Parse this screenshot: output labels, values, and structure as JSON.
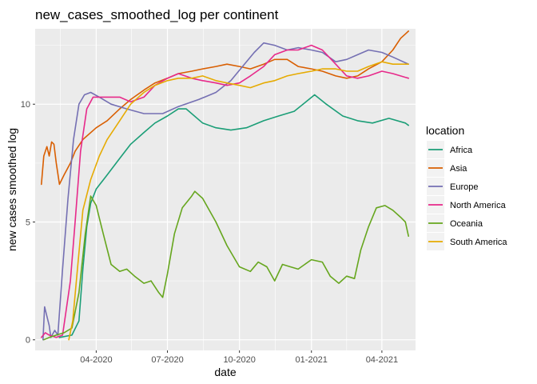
{
  "chart_data": {
    "type": "line",
    "title": "new_cases_smoothed_log per continent",
    "xlabel": "date",
    "ylabel": "new cases smoothed log",
    "xlim": [
      "2020-01-14",
      "2021-05-14"
    ],
    "ylim": [
      -0.45,
      13.2
    ],
    "x_ticks": [
      "2020-04-01",
      "2020-07-01",
      "2020-10-01",
      "2021-01-01",
      "2021-04-01"
    ],
    "x_tick_labels": [
      "04-2020",
      "07-2020",
      "10-2020",
      "01-2021",
      "04-2021"
    ],
    "y_ticks": [
      0,
      5,
      10
    ],
    "y_tick_labels": [
      "0",
      "5",
      "10"
    ],
    "grid": true,
    "legend": {
      "title": "location",
      "position": "right"
    },
    "series": [
      {
        "name": "Africa",
        "color": "#1b9e77",
        "points": [
          [
            "2020-02-14",
            0.1
          ],
          [
            "2020-03-01",
            0.2
          ],
          [
            "2020-03-10",
            0.8
          ],
          [
            "2020-03-15",
            3.0
          ],
          [
            "2020-03-20",
            4.8
          ],
          [
            "2020-03-25",
            5.8
          ],
          [
            "2020-04-01",
            6.4
          ],
          [
            "2020-04-15",
            7.0
          ],
          [
            "2020-05-01",
            7.7
          ],
          [
            "2020-05-15",
            8.3
          ],
          [
            "2020-06-01",
            8.8
          ],
          [
            "2020-06-15",
            9.2
          ],
          [
            "2020-07-01",
            9.5
          ],
          [
            "2020-07-15",
            9.8
          ],
          [
            "2020-07-25",
            9.8
          ],
          [
            "2020-08-15",
            9.2
          ],
          [
            "2020-09-01",
            9.0
          ],
          [
            "2020-09-20",
            8.9
          ],
          [
            "2020-10-10",
            9.0
          ],
          [
            "2020-11-01",
            9.3
          ],
          [
            "2020-11-20",
            9.5
          ],
          [
            "2020-12-10",
            9.7
          ],
          [
            "2020-12-25",
            10.1
          ],
          [
            "2021-01-05",
            10.4
          ],
          [
            "2021-01-20",
            10.0
          ],
          [
            "2021-02-10",
            9.5
          ],
          [
            "2021-03-01",
            9.3
          ],
          [
            "2021-03-20",
            9.2
          ],
          [
            "2021-04-10",
            9.4
          ],
          [
            "2021-05-01",
            9.2
          ],
          [
            "2021-05-05",
            9.1
          ]
        ]
      },
      {
        "name": "Asia",
        "color": "#d95f02",
        "points": [
          [
            "2020-01-22",
            6.6
          ],
          [
            "2020-01-25",
            7.8
          ],
          [
            "2020-01-29",
            8.2
          ],
          [
            "2020-02-01",
            7.8
          ],
          [
            "2020-02-04",
            8.4
          ],
          [
            "2020-02-07",
            8.3
          ],
          [
            "2020-02-10",
            7.5
          ],
          [
            "2020-02-14",
            6.6
          ],
          [
            "2020-02-20",
            7.0
          ],
          [
            "2020-02-28",
            7.5
          ],
          [
            "2020-03-05",
            8.0
          ],
          [
            "2020-03-15",
            8.5
          ],
          [
            "2020-04-01",
            9.0
          ],
          [
            "2020-04-15",
            9.3
          ],
          [
            "2020-05-01",
            9.8
          ],
          [
            "2020-05-15",
            10.2
          ],
          [
            "2020-06-01",
            10.6
          ],
          [
            "2020-06-15",
            10.9
          ],
          [
            "2020-07-01",
            11.1
          ],
          [
            "2020-07-15",
            11.3
          ],
          [
            "2020-08-01",
            11.4
          ],
          [
            "2020-08-15",
            11.5
          ],
          [
            "2020-09-01",
            11.6
          ],
          [
            "2020-09-15",
            11.7
          ],
          [
            "2020-10-01",
            11.6
          ],
          [
            "2020-10-15",
            11.5
          ],
          [
            "2020-11-01",
            11.7
          ],
          [
            "2020-11-15",
            11.9
          ],
          [
            "2020-12-01",
            11.9
          ],
          [
            "2020-12-15",
            11.6
          ],
          [
            "2021-01-01",
            11.5
          ],
          [
            "2021-01-15",
            11.4
          ],
          [
            "2021-02-01",
            11.2
          ],
          [
            "2021-02-15",
            11.1
          ],
          [
            "2021-03-01",
            11.2
          ],
          [
            "2021-03-15",
            11.5
          ],
          [
            "2021-04-01",
            11.8
          ],
          [
            "2021-04-15",
            12.3
          ],
          [
            "2021-04-25",
            12.8
          ],
          [
            "2021-05-05",
            13.1
          ]
        ]
      },
      {
        "name": "Europe",
        "color": "#7570b3",
        "points": [
          [
            "2020-01-24",
            0.0
          ],
          [
            "2020-01-26",
            1.4
          ],
          [
            "2020-01-29",
            1.0
          ],
          [
            "2020-02-01",
            0.6
          ],
          [
            "2020-02-03",
            0.1
          ],
          [
            "2020-02-08",
            0.4
          ],
          [
            "2020-02-12",
            0.2
          ],
          [
            "2020-02-18",
            3.0
          ],
          [
            "2020-02-25",
            6.0
          ],
          [
            "2020-03-03",
            8.5
          ],
          [
            "2020-03-10",
            10.0
          ],
          [
            "2020-03-17",
            10.4
          ],
          [
            "2020-03-25",
            10.5
          ],
          [
            "2020-04-05",
            10.3
          ],
          [
            "2020-04-20",
            10.0
          ],
          [
            "2020-05-10",
            9.8
          ],
          [
            "2020-06-01",
            9.6
          ],
          [
            "2020-06-25",
            9.6
          ],
          [
            "2020-07-15",
            9.9
          ],
          [
            "2020-08-10",
            10.2
          ],
          [
            "2020-09-01",
            10.5
          ],
          [
            "2020-09-20",
            11.0
          ],
          [
            "2020-10-05",
            11.6
          ],
          [
            "2020-10-20",
            12.2
          ],
          [
            "2020-11-01",
            12.6
          ],
          [
            "2020-11-15",
            12.5
          ],
          [
            "2020-12-01",
            12.3
          ],
          [
            "2020-12-15",
            12.4
          ],
          [
            "2021-01-01",
            12.3
          ],
          [
            "2021-01-15",
            12.2
          ],
          [
            "2021-02-01",
            11.8
          ],
          [
            "2021-02-15",
            11.9
          ],
          [
            "2021-03-01",
            12.1
          ],
          [
            "2021-03-15",
            12.3
          ],
          [
            "2021-04-01",
            12.2
          ],
          [
            "2021-04-15",
            12.0
          ],
          [
            "2021-05-05",
            11.7
          ]
        ]
      },
      {
        "name": "North America",
        "color": "#e7298a",
        "points": [
          [
            "2020-01-22",
            0.1
          ],
          [
            "2020-01-27",
            0.3
          ],
          [
            "2020-02-01",
            0.2
          ],
          [
            "2020-02-10",
            0.1
          ],
          [
            "2020-02-18",
            0.2
          ],
          [
            "2020-02-28",
            2.5
          ],
          [
            "2020-03-05",
            5.0
          ],
          [
            "2020-03-12",
            8.0
          ],
          [
            "2020-03-20",
            9.8
          ],
          [
            "2020-03-28",
            10.3
          ],
          [
            "2020-04-15",
            10.3
          ],
          [
            "2020-05-01",
            10.3
          ],
          [
            "2020-05-15",
            10.1
          ],
          [
            "2020-06-01",
            10.3
          ],
          [
            "2020-06-15",
            10.8
          ],
          [
            "2020-07-01",
            11.1
          ],
          [
            "2020-07-15",
            11.3
          ],
          [
            "2020-08-01",
            11.1
          ],
          [
            "2020-08-15",
            11.0
          ],
          [
            "2020-09-01",
            10.9
          ],
          [
            "2020-09-15",
            10.8
          ],
          [
            "2020-10-01",
            10.9
          ],
          [
            "2020-10-15",
            11.2
          ],
          [
            "2020-11-01",
            11.6
          ],
          [
            "2020-11-15",
            12.1
          ],
          [
            "2020-12-01",
            12.3
          ],
          [
            "2020-12-15",
            12.3
          ],
          [
            "2021-01-01",
            12.5
          ],
          [
            "2021-01-15",
            12.3
          ],
          [
            "2021-02-01",
            11.7
          ],
          [
            "2021-02-15",
            11.2
          ],
          [
            "2021-03-01",
            11.1
          ],
          [
            "2021-03-15",
            11.2
          ],
          [
            "2021-04-01",
            11.4
          ],
          [
            "2021-04-15",
            11.3
          ],
          [
            "2021-05-05",
            11.1
          ]
        ]
      },
      {
        "name": "Oceania",
        "color": "#66a61e",
        "points": [
          [
            "2020-01-25",
            0.0
          ],
          [
            "2020-02-01",
            0.1
          ],
          [
            "2020-02-10",
            0.2
          ],
          [
            "2020-02-20",
            0.3
          ],
          [
            "2020-03-01",
            0.5
          ],
          [
            "2020-03-10",
            2.0
          ],
          [
            "2020-03-18",
            4.5
          ],
          [
            "2020-03-25",
            6.1
          ],
          [
            "2020-04-01",
            5.7
          ],
          [
            "2020-04-10",
            4.5
          ],
          [
            "2020-04-20",
            3.2
          ],
          [
            "2020-05-01",
            2.9
          ],
          [
            "2020-05-10",
            3.0
          ],
          [
            "2020-05-20",
            2.7
          ],
          [
            "2020-06-01",
            2.4
          ],
          [
            "2020-06-10",
            2.5
          ],
          [
            "2020-06-20",
            2.0
          ],
          [
            "2020-06-25",
            1.8
          ],
          [
            "2020-07-01",
            2.8
          ],
          [
            "2020-07-10",
            4.5
          ],
          [
            "2020-07-20",
            5.6
          ],
          [
            "2020-08-01",
            6.1
          ],
          [
            "2020-08-05",
            6.3
          ],
          [
            "2020-08-15",
            6.0
          ],
          [
            "2020-09-01",
            5.0
          ],
          [
            "2020-09-15",
            4.0
          ],
          [
            "2020-10-01",
            3.1
          ],
          [
            "2020-10-15",
            2.9
          ],
          [
            "2020-10-25",
            3.3
          ],
          [
            "2020-11-05",
            3.1
          ],
          [
            "2020-11-15",
            2.5
          ],
          [
            "2020-11-25",
            3.2
          ],
          [
            "2020-12-05",
            3.1
          ],
          [
            "2020-12-15",
            3.0
          ],
          [
            "2021-01-01",
            3.4
          ],
          [
            "2021-01-15",
            3.3
          ],
          [
            "2021-01-25",
            2.7
          ],
          [
            "2021-02-05",
            2.4
          ],
          [
            "2021-02-15",
            2.7
          ],
          [
            "2021-02-25",
            2.6
          ],
          [
            "2021-03-05",
            3.8
          ],
          [
            "2021-03-15",
            4.8
          ],
          [
            "2021-03-25",
            5.6
          ],
          [
            "2021-04-05",
            5.7
          ],
          [
            "2021-04-15",
            5.5
          ],
          [
            "2021-04-25",
            5.2
          ],
          [
            "2021-05-01",
            5.0
          ],
          [
            "2021-05-05",
            4.4
          ]
        ]
      },
      {
        "name": "South America",
        "color": "#e6ab02",
        "points": [
          [
            "2020-02-26",
            0.0
          ],
          [
            "2020-03-02",
            0.8
          ],
          [
            "2020-03-08",
            3.0
          ],
          [
            "2020-03-15",
            5.5
          ],
          [
            "2020-03-25",
            6.8
          ],
          [
            "2020-04-05",
            7.8
          ],
          [
            "2020-04-15",
            8.5
          ],
          [
            "2020-05-01",
            9.3
          ],
          [
            "2020-05-15",
            10.0
          ],
          [
            "2020-06-01",
            10.5
          ],
          [
            "2020-06-15",
            10.8
          ],
          [
            "2020-07-01",
            11.0
          ],
          [
            "2020-07-15",
            11.1
          ],
          [
            "2020-08-01",
            11.1
          ],
          [
            "2020-08-15",
            11.2
          ],
          [
            "2020-09-01",
            11.0
          ],
          [
            "2020-09-15",
            10.9
          ],
          [
            "2020-10-01",
            10.8
          ],
          [
            "2020-10-15",
            10.7
          ],
          [
            "2020-11-01",
            10.9
          ],
          [
            "2020-11-15",
            11.0
          ],
          [
            "2020-12-01",
            11.2
          ],
          [
            "2020-12-15",
            11.3
          ],
          [
            "2021-01-01",
            11.4
          ],
          [
            "2021-01-15",
            11.5
          ],
          [
            "2021-02-01",
            11.5
          ],
          [
            "2021-02-15",
            11.4
          ],
          [
            "2021-03-01",
            11.4
          ],
          [
            "2021-03-15",
            11.6
          ],
          [
            "2021-04-01",
            11.8
          ],
          [
            "2021-04-15",
            11.7
          ],
          [
            "2021-05-05",
            11.7
          ]
        ]
      }
    ]
  }
}
